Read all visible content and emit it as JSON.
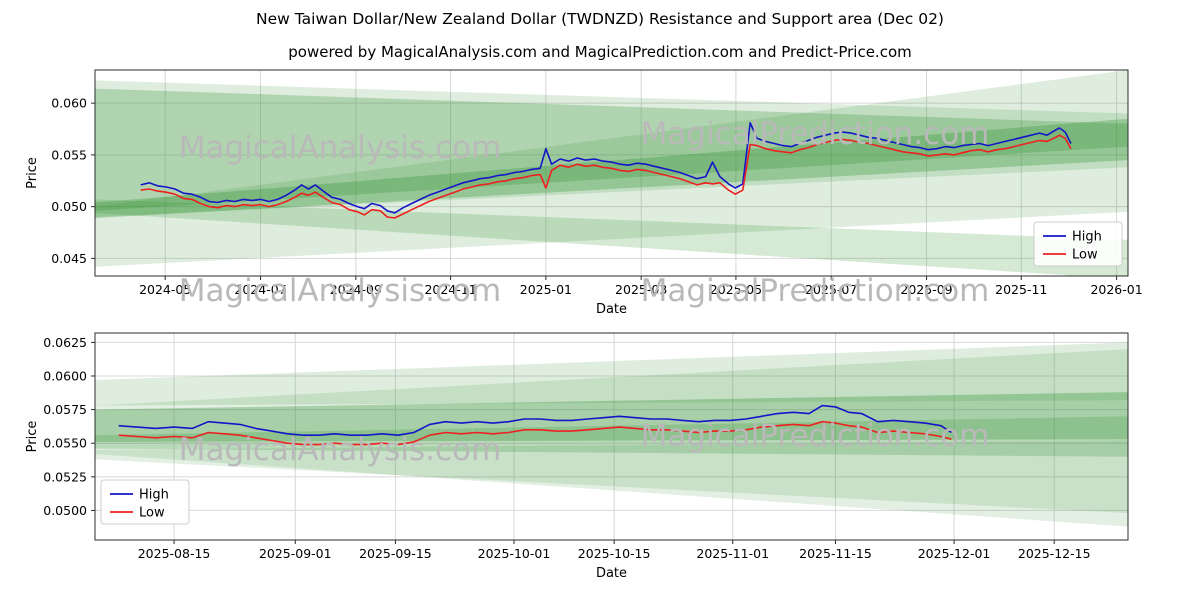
{
  "title": "New Taiwan Dollar/New Zealand Dollar (TWDNZD) Resistance and Support area (Dec 02)",
  "subtitle": "powered by MagicalAnalysis.com and MagicalPrediction.com and Predict-Price.com",
  "watermarks": [
    "MagicalAnalysis.com",
    "MagicalPrediction.com"
  ],
  "colors": {
    "high": "#1515c8",
    "low": "#ef2020",
    "band": "#2f8f2f",
    "grid": "#d8d8d8",
    "frame": "#2b2b2b",
    "legend_border": "#cccccc",
    "watermark": "#b9b9b9"
  },
  "chart_data": [
    {
      "type": "line",
      "title": "",
      "xlabel": "Date",
      "ylabel": "Price",
      "x_range": [
        2024.21,
        2026.02
      ],
      "y_range": [
        0.0433,
        0.0632
      ],
      "grid": true,
      "legend_position": "right",
      "x_ticks": [
        {
          "pos": 2024.333,
          "label": "2024-05"
        },
        {
          "pos": 2024.5,
          "label": "2024-07"
        },
        {
          "pos": 2024.667,
          "label": "2024-09"
        },
        {
          "pos": 2024.833,
          "label": "2024-11"
        },
        {
          "pos": 2025.0,
          "label": "2025-01"
        },
        {
          "pos": 2025.167,
          "label": "2025-03"
        },
        {
          "pos": 2025.333,
          "label": "2025-05"
        },
        {
          "pos": 2025.5,
          "label": "2025-07"
        },
        {
          "pos": 2025.667,
          "label": "2025-09"
        },
        {
          "pos": 2025.833,
          "label": "2025-11"
        },
        {
          "pos": 2026.0,
          "label": "2026-01"
        }
      ],
      "y_ticks": [
        {
          "pos": 0.045,
          "label": "0.045"
        },
        {
          "pos": 0.05,
          "label": "0.050"
        },
        {
          "pos": 0.055,
          "label": "0.055"
        },
        {
          "pos": 0.06,
          "label": "0.060"
        }
      ],
      "x": [
        2024.29,
        2024.305,
        2024.32,
        2024.335,
        2024.35,
        2024.365,
        2024.38,
        2024.395,
        2024.41,
        2024.425,
        2024.44,
        2024.455,
        2024.47,
        2024.485,
        2024.5,
        2024.515,
        2024.53,
        2024.545,
        2024.56,
        2024.572,
        2024.584,
        2024.596,
        2024.61,
        2024.625,
        2024.64,
        2024.655,
        2024.67,
        2024.682,
        2024.695,
        2024.71,
        2024.722,
        2024.735,
        2024.75,
        2024.765,
        2024.78,
        2024.795,
        2024.81,
        2024.825,
        2024.84,
        2024.855,
        2024.87,
        2024.885,
        2024.9,
        2024.915,
        2024.93,
        2024.945,
        2024.96,
        2024.975,
        2024.99,
        2025.0,
        2025.01,
        2025.025,
        2025.04,
        2025.055,
        2025.07,
        2025.085,
        2025.1,
        2025.115,
        2025.13,
        2025.145,
        2025.16,
        2025.175,
        2025.19,
        2025.205,
        2025.22,
        2025.235,
        2025.25,
        2025.265,
        2025.28,
        2025.292,
        2025.305,
        2025.32,
        2025.332,
        2025.345,
        2025.358,
        2025.37,
        2025.385,
        2025.4,
        2025.415,
        2025.43,
        2025.445,
        2025.46,
        2025.475,
        2025.49,
        2025.505,
        2025.52,
        2025.535,
        2025.55,
        2025.565,
        2025.58,
        2025.595,
        2025.61,
        2025.625,
        2025.64,
        2025.655,
        2025.67,
        2025.685,
        2025.7,
        2025.715,
        2025.73,
        2025.745,
        2025.76,
        2025.775,
        2025.79,
        2025.805,
        2025.82,
        2025.835,
        2025.85,
        2025.865,
        2025.878,
        2025.89,
        2025.9,
        2025.91,
        2025.92
      ],
      "series": [
        {
          "name": "High",
          "color_key": "high",
          "values": [
            0.0521,
            0.0523,
            0.052,
            0.0519,
            0.0517,
            0.0513,
            0.0512,
            0.0509,
            0.0505,
            0.0504,
            0.0506,
            0.0505,
            0.0507,
            0.0506,
            0.0507,
            0.0505,
            0.0507,
            0.0511,
            0.0516,
            0.0521,
            0.0517,
            0.0521,
            0.0515,
            0.0509,
            0.0507,
            0.0503,
            0.05,
            0.0498,
            0.0503,
            0.0501,
            0.0496,
            0.0494,
            0.0499,
            0.0503,
            0.0507,
            0.0511,
            0.0514,
            0.0517,
            0.052,
            0.0523,
            0.0525,
            0.0527,
            0.0528,
            0.053,
            0.0531,
            0.0533,
            0.0534,
            0.0536,
            0.0537,
            0.0556,
            0.0541,
            0.0546,
            0.0544,
            0.0547,
            0.0545,
            0.0546,
            0.0544,
            0.0543,
            0.0541,
            0.054,
            0.0542,
            0.0541,
            0.0539,
            0.0537,
            0.0535,
            0.0533,
            0.053,
            0.0527,
            0.0529,
            0.0543,
            0.0529,
            0.0522,
            0.0518,
            0.0522,
            0.0581,
            0.0566,
            0.0563,
            0.0561,
            0.0559,
            0.0558,
            0.0561,
            0.0564,
            0.0567,
            0.0569,
            0.0571,
            0.0572,
            0.0571,
            0.0569,
            0.0567,
            0.0566,
            0.0564,
            0.0562,
            0.056,
            0.0558,
            0.0557,
            0.0555,
            0.0556,
            0.0558,
            0.0557,
            0.0559,
            0.056,
            0.0561,
            0.0559,
            0.0561,
            0.0563,
            0.0565,
            0.0567,
            0.0569,
            0.0571,
            0.0569,
            0.0573,
            0.0576,
            0.0572,
            0.0561
          ]
        },
        {
          "name": "Low",
          "color_key": "low",
          "values": [
            0.0516,
            0.0517,
            0.0515,
            0.0514,
            0.0512,
            0.0508,
            0.0507,
            0.0503,
            0.05,
            0.0499,
            0.0501,
            0.05,
            0.0502,
            0.0501,
            0.0502,
            0.05,
            0.0502,
            0.0505,
            0.0509,
            0.0513,
            0.0511,
            0.0514,
            0.0509,
            0.0504,
            0.0502,
            0.0497,
            0.0495,
            0.0492,
            0.0497,
            0.0496,
            0.049,
            0.0489,
            0.0493,
            0.0497,
            0.0501,
            0.0505,
            0.0508,
            0.0511,
            0.0514,
            0.0517,
            0.0519,
            0.0521,
            0.0522,
            0.0524,
            0.0525,
            0.0527,
            0.0528,
            0.053,
            0.0531,
            0.0518,
            0.0535,
            0.054,
            0.0538,
            0.0541,
            0.0539,
            0.054,
            0.0538,
            0.0537,
            0.0535,
            0.0534,
            0.0536,
            0.0535,
            0.0533,
            0.0531,
            0.0529,
            0.0527,
            0.0524,
            0.0521,
            0.0523,
            0.0522,
            0.0523,
            0.0516,
            0.0512,
            0.0516,
            0.056,
            0.0559,
            0.0556,
            0.0554,
            0.0553,
            0.0552,
            0.0555,
            0.0557,
            0.056,
            0.0562,
            0.0564,
            0.0565,
            0.0564,
            0.0562,
            0.0561,
            0.0559,
            0.0557,
            0.0555,
            0.0553,
            0.0552,
            0.0551,
            0.0549,
            0.055,
            0.0551,
            0.055,
            0.0552,
            0.0554,
            0.0555,
            0.0553,
            0.0555,
            0.0556,
            0.0558,
            0.056,
            0.0562,
            0.0564,
            0.0563,
            0.0566,
            0.0569,
            0.0566,
            0.0556
          ]
        }
      ],
      "bands": [
        {
          "alpha": 0.16,
          "pts": [
            [
              2024.21,
              0.0622
            ],
            [
              2026.02,
              0.059
            ],
            [
              2026.02,
              0.0538
            ],
            [
              2024.21,
              0.049
            ]
          ]
        },
        {
          "alpha": 0.16,
          "pts": [
            [
              2024.21,
              0.05
            ],
            [
              2026.02,
              0.0632
            ],
            [
              2026.02,
              0.0495
            ],
            [
              2024.21,
              0.0442
            ]
          ]
        },
        {
          "alpha": 0.3,
          "pts": [
            [
              2024.21,
              0.0504
            ],
            [
              2026.02,
              0.0585
            ],
            [
              2026.02,
              0.0545
            ],
            [
              2024.21,
              0.0489
            ]
          ]
        },
        {
          "alpha": 0.2,
          "pts": [
            [
              2024.21,
              0.0507
            ],
            [
              2026.02,
              0.0468
            ],
            [
              2026.02,
              0.043
            ],
            [
              2024.21,
              0.0494
            ]
          ]
        },
        {
          "alpha": 0.26,
          "pts": [
            [
              2024.21,
              0.0614
            ],
            [
              2026.02,
              0.058
            ],
            [
              2026.02,
              0.0558
            ],
            [
              2024.21,
              0.0496
            ]
          ]
        }
      ]
    },
    {
      "type": "line",
      "title": "",
      "xlabel": "Date",
      "ylabel": "Price",
      "x_range": [
        2025.591,
        2025.983
      ],
      "y_range": [
        0.0478,
        0.0632
      ],
      "grid": true,
      "legend_position": "lower-left",
      "x_ticks": [
        {
          "pos": 2025.621,
          "label": "2025-08-15"
        },
        {
          "pos": 2025.667,
          "label": "2025-09-01"
        },
        {
          "pos": 2025.705,
          "label": "2025-09-15"
        },
        {
          "pos": 2025.75,
          "label": "2025-10-01"
        },
        {
          "pos": 2025.788,
          "label": "2025-10-15"
        },
        {
          "pos": 2025.833,
          "label": "2025-11-01"
        },
        {
          "pos": 2025.872,
          "label": "2025-11-15"
        },
        {
          "pos": 2025.917,
          "label": "2025-12-01"
        },
        {
          "pos": 2025.955,
          "label": "2025-12-15"
        }
      ],
      "y_ticks": [
        {
          "pos": 0.05,
          "label": "0.0500"
        },
        {
          "pos": 0.0525,
          "label": "0.0525"
        },
        {
          "pos": 0.055,
          "label": "0.0550"
        },
        {
          "pos": 0.0575,
          "label": "0.0575"
        },
        {
          "pos": 0.06,
          "label": "0.0600"
        },
        {
          "pos": 0.0625,
          "label": "0.0625"
        }
      ],
      "x": [
        2025.6,
        2025.607,
        2025.614,
        2025.621,
        2025.628,
        2025.634,
        2025.64,
        2025.646,
        2025.652,
        2025.658,
        2025.664,
        2025.67,
        2025.676,
        2025.682,
        2025.688,
        2025.694,
        2025.7,
        2025.706,
        2025.712,
        2025.718,
        2025.724,
        2025.73,
        2025.736,
        2025.742,
        2025.748,
        2025.754,
        2025.76,
        2025.766,
        2025.772,
        2025.778,
        2025.784,
        2025.79,
        2025.796,
        2025.802,
        2025.808,
        2025.814,
        2025.82,
        2025.826,
        2025.832,
        2025.838,
        2025.844,
        2025.85,
        2025.856,
        2025.862,
        2025.867,
        2025.872,
        2025.877,
        2025.882,
        2025.888,
        2025.894,
        2025.9,
        2025.906,
        2025.912,
        2025.916
      ],
      "series": [
        {
          "name": "High",
          "color_key": "high",
          "values": [
            0.0563,
            0.0562,
            0.0561,
            0.0562,
            0.0561,
            0.0566,
            0.0565,
            0.0564,
            0.0561,
            0.0559,
            0.0557,
            0.0556,
            0.0556,
            0.0557,
            0.0556,
            0.0556,
            0.0557,
            0.0556,
            0.0558,
            0.0564,
            0.0566,
            0.0565,
            0.0566,
            0.0565,
            0.0566,
            0.0568,
            0.0568,
            0.0567,
            0.0567,
            0.0568,
            0.0569,
            0.057,
            0.0569,
            0.0568,
            0.0568,
            0.0567,
            0.0566,
            0.0567,
            0.0567,
            0.0568,
            0.057,
            0.0572,
            0.0573,
            0.0572,
            0.0578,
            0.0577,
            0.0573,
            0.0572,
            0.0566,
            0.0567,
            0.0566,
            0.0565,
            0.0563,
            0.0558
          ]
        },
        {
          "name": "Low",
          "color_key": "low",
          "values": [
            0.0556,
            0.0555,
            0.0554,
            0.0555,
            0.0554,
            0.0558,
            0.0557,
            0.0556,
            0.0554,
            0.0552,
            0.055,
            0.0549,
            0.0549,
            0.055,
            0.0549,
            0.0549,
            0.055,
            0.0549,
            0.0551,
            0.0556,
            0.0558,
            0.0557,
            0.0558,
            0.0557,
            0.0558,
            0.056,
            0.056,
            0.0559,
            0.0559,
            0.056,
            0.0561,
            0.0562,
            0.0561,
            0.056,
            0.056,
            0.0559,
            0.0558,
            0.0559,
            0.0559,
            0.056,
            0.0562,
            0.0563,
            0.0564,
            0.0563,
            0.0566,
            0.0565,
            0.0563,
            0.0562,
            0.0558,
            0.0559,
            0.0558,
            0.0557,
            0.0555,
            0.0553
          ]
        }
      ],
      "bands": [
        {
          "alpha": 0.16,
          "pts": [
            [
              2025.591,
              0.0597
            ],
            [
              2025.983,
              0.0625
            ],
            [
              2025.983,
              0.0582
            ],
            [
              2025.591,
              0.0578
            ]
          ]
        },
        {
          "alpha": 0.14,
          "pts": [
            [
              2025.591,
              0.0578
            ],
            [
              2025.983,
              0.062
            ],
            [
              2025.983,
              0.0488
            ],
            [
              2025.591,
              0.0542
            ]
          ]
        },
        {
          "alpha": 0.32,
          "pts": [
            [
              2025.591,
              0.0575
            ],
            [
              2025.983,
              0.0588
            ],
            [
              2025.983,
              0.0553
            ],
            [
              2025.591,
              0.0551
            ]
          ]
        },
        {
          "alpha": 0.22,
          "pts": [
            [
              2025.591,
              0.0556
            ],
            [
              2025.983,
              0.057
            ],
            [
              2025.983,
              0.054
            ],
            [
              2025.591,
              0.0546
            ]
          ]
        },
        {
          "alpha": 0.14,
          "pts": [
            [
              2025.591,
              0.0545
            ],
            [
              2025.983,
              0.0552
            ],
            [
              2025.983,
              0.0498
            ],
            [
              2025.591,
              0.0538
            ]
          ]
        }
      ]
    }
  ]
}
